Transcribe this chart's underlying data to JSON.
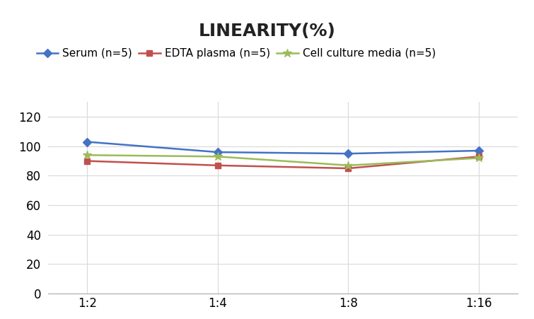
{
  "title": "LINEARITY(%)",
  "x_labels": [
    "1:2",
    "1:4",
    "1:8",
    "1:16"
  ],
  "x_positions": [
    0,
    1,
    2,
    3
  ],
  "series": [
    {
      "label": "Serum (n=5)",
      "values": [
        103,
        96,
        95,
        97
      ],
      "color": "#4472C4",
      "marker": "D",
      "marker_size": 6
    },
    {
      "label": "EDTA plasma (n=5)",
      "values": [
        90,
        87,
        85,
        93
      ],
      "color": "#C0504D",
      "marker": "s",
      "marker_size": 6
    },
    {
      "label": "Cell culture media (n=5)",
      "values": [
        94,
        93,
        87,
        92
      ],
      "color": "#9BBB59",
      "marker": "*",
      "marker_size": 9
    }
  ],
  "ylim": [
    0,
    130
  ],
  "yticks": [
    0,
    20,
    40,
    60,
    80,
    100,
    120
  ],
  "grid_color": "#D9D9D9",
  "background_color": "#FFFFFF",
  "title_fontsize": 18,
  "legend_fontsize": 11,
  "tick_fontsize": 12
}
